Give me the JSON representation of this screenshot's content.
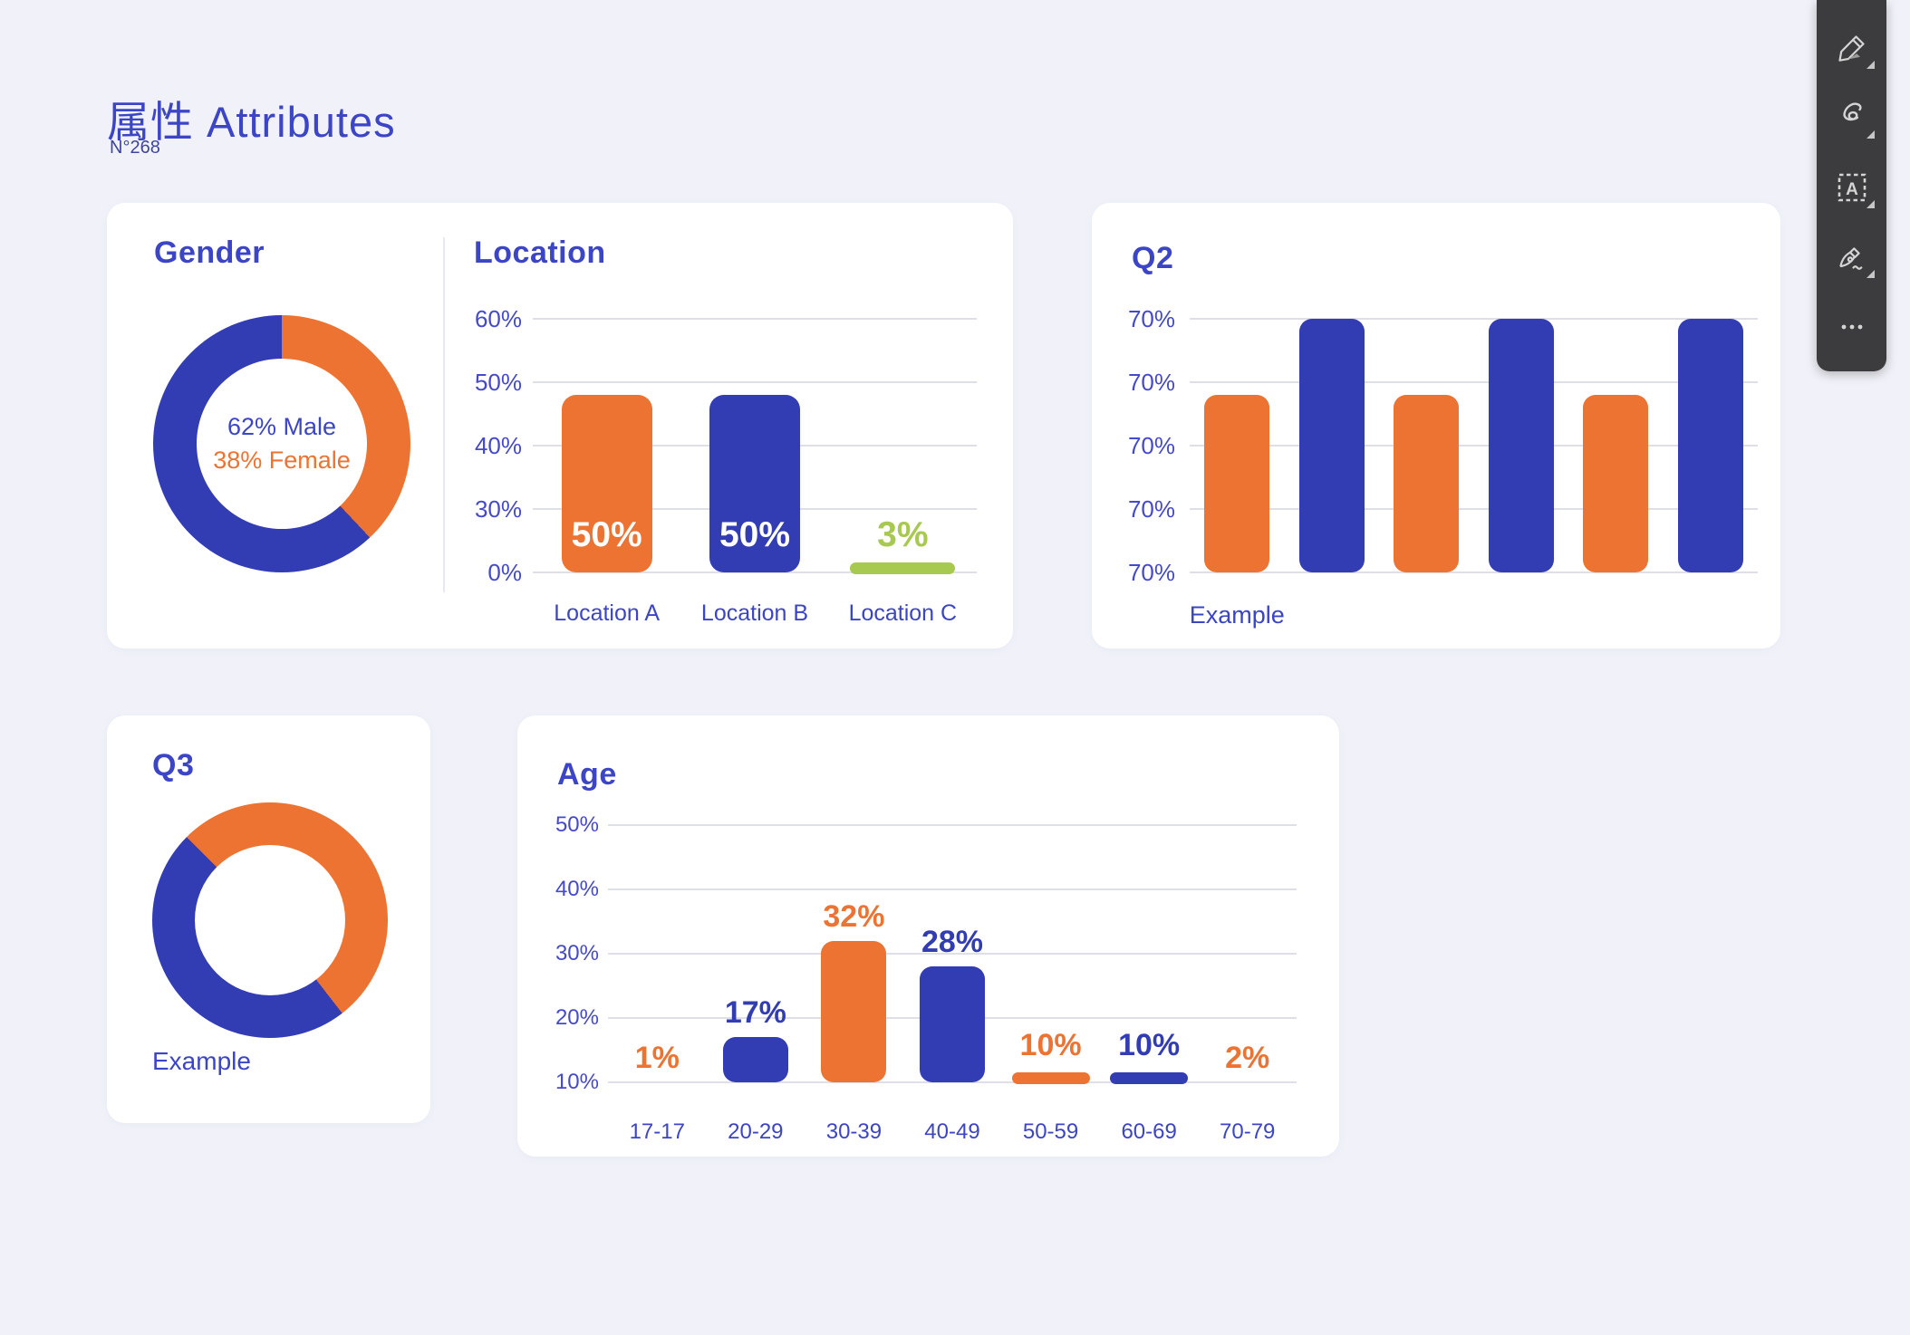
{
  "header": {
    "title": "属性 Attributes",
    "subtitle": "N°268"
  },
  "colors": {
    "blue": "#323CB3",
    "orange": "#EC7331",
    "green": "#A8C94F",
    "heading": "#3B45C5",
    "tick": "#4549CB",
    "grid": "#DEDFE8",
    "bg": "#F1F2F9",
    "card": "#FFFFFF",
    "white": "#FFFFFF",
    "subtitle": "#3E449E",
    "toolbarBg": "#3C3C3E",
    "toolbarIcon": "#D4D4D4"
  },
  "toolbar": {
    "tools": [
      {
        "name": "marker"
      },
      {
        "name": "lasso"
      },
      {
        "name": "text-box"
      },
      {
        "name": "signature-pen"
      },
      {
        "name": "more-options"
      }
    ]
  },
  "chart_data": [
    {
      "id": "gender",
      "type": "pie",
      "title": "Gender",
      "donut": true,
      "start_angle_deg": 0,
      "segments": [
        {
          "label": "Female",
          "value": 38,
          "color": "orange"
        },
        {
          "label": "Male",
          "value": 62,
          "color": "blue"
        }
      ],
      "center_lines": [
        {
          "text": "62% Male",
          "color": "blue"
        },
        {
          "text": "38% Female",
          "color": "orange"
        }
      ]
    },
    {
      "id": "location",
      "type": "bar",
      "title": "Location",
      "categories": [
        "Location A",
        "Location B",
        "Location C"
      ],
      "values": [
        50,
        50,
        3
      ],
      "value_labels": [
        "50%",
        "50%",
        "3%"
      ],
      "bar_colors": [
        "orange",
        "blue",
        "green"
      ],
      "label_colors": [
        "white",
        "white",
        "green"
      ],
      "bar_styles": [
        "bar",
        "bar",
        "pill"
      ],
      "label_pos": [
        "inside",
        "inside",
        "above"
      ],
      "height_fracs": [
        0.7,
        0.7,
        0.05
      ],
      "y_ticks": [
        "60%",
        "50%",
        "40%",
        "30%",
        "0%"
      ],
      "grid": true,
      "legend": false
    },
    {
      "id": "q2",
      "type": "bar",
      "title": "Q2",
      "categories": [
        "Example"
      ],
      "cat_mode": "first",
      "values": [
        48,
        70,
        48,
        70,
        48,
        70
      ],
      "value_labels": [],
      "bar_colors": [
        "orange",
        "blue",
        "orange",
        "blue",
        "orange",
        "blue"
      ],
      "bar_styles": [
        "bar",
        "bar",
        "bar",
        "bar",
        "bar",
        "bar"
      ],
      "height_fracs": [
        0.7,
        1,
        0.7,
        1,
        0.7,
        1
      ],
      "y_ticks": [
        "70%",
        "70%",
        "70%",
        "70%",
        "70%"
      ],
      "grid": true,
      "legend": false
    },
    {
      "id": "q3",
      "type": "pie",
      "title": "Q3",
      "donut": true,
      "start_angle_deg": 315,
      "segments": [
        {
          "label": "",
          "value": 52,
          "color": "orange"
        },
        {
          "label": "",
          "value": 48,
          "color": "blue"
        }
      ],
      "x_label": "Example"
    },
    {
      "id": "age",
      "type": "bar",
      "title": "Age",
      "categories": [
        "17-17",
        "20-29",
        "30-39",
        "40-49",
        "50-59",
        "60-69",
        "70-79"
      ],
      "values": [
        1,
        17,
        32,
        28,
        10,
        10,
        2
      ],
      "value_labels": [
        "1%",
        "17%",
        "32%",
        "28%",
        "10%",
        "10%",
        "2%"
      ],
      "bar_colors": [
        "orange",
        "blue",
        "orange",
        "blue",
        "orange",
        "blue",
        "orange"
      ],
      "label_colors": [
        "orange",
        "blue",
        "orange",
        "blue",
        "orange",
        "blue",
        "orange"
      ],
      "bar_styles": [
        "none",
        "bar",
        "bar",
        "bar",
        "pill",
        "pill",
        "none"
      ],
      "height_fracs": [
        0,
        0.175,
        0.55,
        0.45,
        0.046,
        0.046,
        0
      ],
      "y_ticks": [
        "50%",
        "40%",
        "30%",
        "20%",
        "10%"
      ],
      "axis_min": 10,
      "axis_max": 50,
      "grid": true,
      "legend": false
    }
  ]
}
